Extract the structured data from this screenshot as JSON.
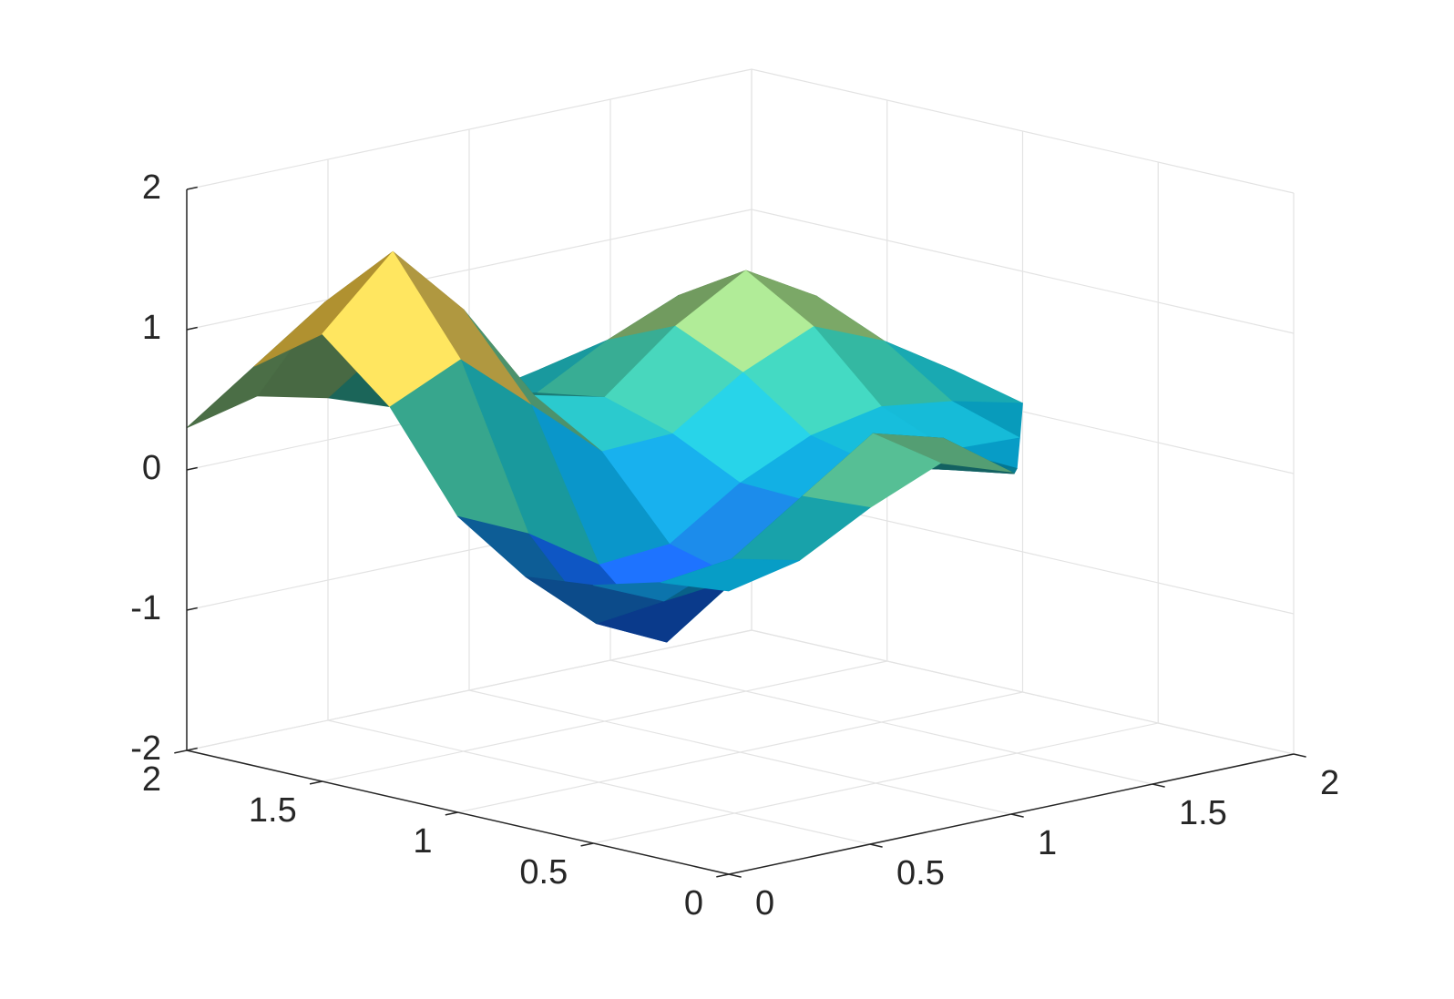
{
  "chart_data": {
    "type": "surface",
    "x": [
      0,
      0.25,
      0.5,
      0.75,
      1,
      1.25,
      1.5,
      1.75,
      2
    ],
    "y": [
      0,
      0.25,
      0.5,
      0.75,
      1,
      1.25,
      1.5,
      1.75,
      2
    ],
    "z": [
      [
        0.02,
        0.13,
        0.4,
        0.61,
        0.44,
        null,
        null,
        null,
        null
      ],
      [
        -0.03,
        0.03,
        0.37,
        0.71,
        0.57,
        0.21,
        null,
        null,
        null
      ],
      [
        -0.16,
        -0.38,
        -0.33,
        0.09,
        0.26,
        0.13,
        0.03,
        null,
        null
      ],
      [
        -0.21,
        -0.65,
        -0.89,
        -0.54,
        -0.1,
        0.04,
        0.05,
        0.03,
        null
      ],
      [
        0.11,
        -0.12,
        -0.45,
        -0.41,
        -0.08,
        0.15,
        0.25,
        0.18,
        0.06
      ],
      [
        0.78,
        1.01,
        0.58,
        0.14,
        0.16,
        0.49,
        0.71,
        0.5,
        0.18
      ],
      [
        1.19,
        1.67,
        1.15,
        0.43,
        0.31,
        0.71,
        1.0,
        0.71,
        0.25
      ],
      [
        0.85,
        1.2,
        0.85,
        0.33,
        0.23,
        0.5,
        0.71,
        0.5,
        0.18
      ],
      [
        0.3,
        0.42,
        0.3,
        0.12,
        0.08,
        0.18,
        0.25,
        0.18,
        0.06
      ]
    ],
    "xlim": [
      0,
      2
    ],
    "ylim": [
      0,
      2
    ],
    "zlim": [
      -2,
      2
    ],
    "xticks": [
      0,
      0.5,
      1,
      1.5,
      2
    ],
    "yticks": [
      0,
      0.5,
      1,
      1.5,
      2
    ],
    "zticks": [
      -2,
      -1,
      0,
      1,
      2
    ],
    "grid": true,
    "colormap": [
      "#352a87",
      "#0f5cdd",
      "#1481d6",
      "#06a4ca",
      "#2eb7a4",
      "#87bf77",
      "#d1bb59",
      "#fec832",
      "#f9fb0e"
    ]
  }
}
